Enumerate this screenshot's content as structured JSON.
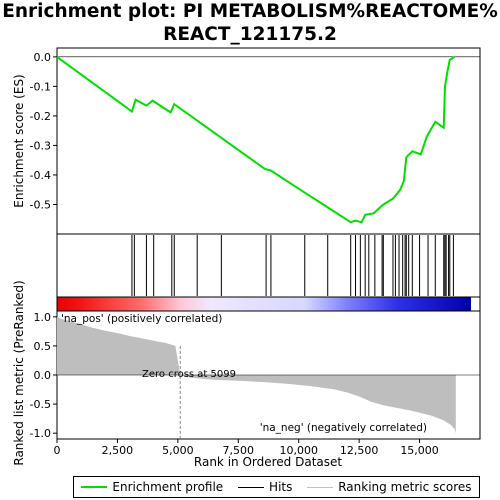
{
  "title_line1": "Enrichment plot: PI METABOLISM%REACTOME%",
  "title_line2": "REACT_121175.2",
  "legend": {
    "enrichment": "Enrichment profile",
    "hits": "Hits",
    "ranking": "Ranking metric scores"
  },
  "colors": {
    "enrichment": "#00e000",
    "hits": "#000000",
    "ranking": "#bebebe",
    "pos": "#ff0000",
    "neg": "#0000ff"
  },
  "annotations": {
    "pos_label": "'na_pos' (positively correlated)",
    "neg_label": "'na_neg' (negatively correlated)",
    "zero_cross": "Zero cross at 5099"
  },
  "chart_data": [
    {
      "type": "line",
      "name": "enrichment-profile",
      "ylabel": "Enrichment score (ES)",
      "ylim": [
        -0.6,
        0.03
      ],
      "xlim": [
        0,
        17500
      ],
      "yticks": [
        0.0,
        -0.1,
        -0.2,
        -0.3,
        -0.4,
        -0.5
      ],
      "ytick_labels": [
        "0.0",
        "-0.1",
        "-0.2",
        "-0.3",
        "-0.4",
        "-0.5"
      ],
      "x": [
        0,
        3100,
        3250,
        3700,
        3950,
        4700,
        4850,
        8600,
        8850,
        10250,
        11200,
        12150,
        12350,
        12600,
        12750,
        13100,
        13500,
        13900,
        14200,
        14350,
        14450,
        14700,
        15050,
        15300,
        15650,
        16000,
        16050,
        16150,
        16250,
        16450
      ],
      "y": [
        0.0,
        -0.185,
        -0.145,
        -0.165,
        -0.148,
        -0.188,
        -0.16,
        -0.38,
        -0.385,
        -0.46,
        -0.51,
        -0.56,
        -0.555,
        -0.56,
        -0.535,
        -0.53,
        -0.5,
        -0.48,
        -0.45,
        -0.42,
        -0.34,
        -0.32,
        -0.33,
        -0.27,
        -0.22,
        -0.24,
        -0.1,
        -0.05,
        -0.01,
        0.0
      ]
    },
    {
      "type": "scatter",
      "name": "hits",
      "x": [
        3100,
        3200,
        3700,
        4000,
        4750,
        4850,
        5800,
        6800,
        8650,
        8850,
        10250,
        11200,
        12150,
        12350,
        12550,
        12750,
        12900,
        13150,
        13450,
        13500,
        13900,
        14000,
        14150,
        14300,
        14400,
        14450,
        14550,
        14700,
        15000,
        15350,
        15650,
        16000,
        16050,
        16100,
        16200,
        16250,
        16400
      ]
    },
    {
      "type": "area",
      "name": "ranking-metric",
      "xlabel": "Rank in Ordered Dataset",
      "ylabel": "Ranked list metric (PreRanked)",
      "ylim": [
        -1.1,
        1.1
      ],
      "xlim": [
        0,
        17500
      ],
      "yticks": [
        1.0,
        0.5,
        0.0,
        -0.5,
        -1.0
      ],
      "ytick_labels": [
        "1.0",
        "0.5",
        "0.0",
        "-0.5",
        "-1.0"
      ],
      "xticks": [
        0,
        2500,
        5000,
        7500,
        10000,
        12500,
        15000
      ],
      "xtick_labels": [
        "0",
        "2,500",
        "5,000",
        "7,500",
        "10,000",
        "12,500",
        "15,000"
      ],
      "x": [
        0,
        150,
        500,
        1000,
        1500,
        2000,
        2500,
        3000,
        3500,
        4000,
        4500,
        4900,
        5099,
        5600,
        6500,
        7500,
        8500,
        9500,
        10500,
        11500,
        12000,
        12500,
        13000,
        13500,
        14000,
        14500,
        15000,
        15500,
        16000,
        16300,
        16450,
        16500
      ],
      "y": [
        1.0,
        0.97,
        0.93,
        0.87,
        0.81,
        0.76,
        0.72,
        0.67,
        0.63,
        0.59,
        0.55,
        0.5,
        0.0,
        -0.05,
        -0.08,
        -0.1,
        -0.12,
        -0.15,
        -0.19,
        -0.25,
        -0.3,
        -0.37,
        -0.46,
        -0.52,
        -0.56,
        -0.6,
        -0.65,
        -0.7,
        -0.78,
        -0.86,
        -0.93,
        -1.0
      ]
    }
  ]
}
